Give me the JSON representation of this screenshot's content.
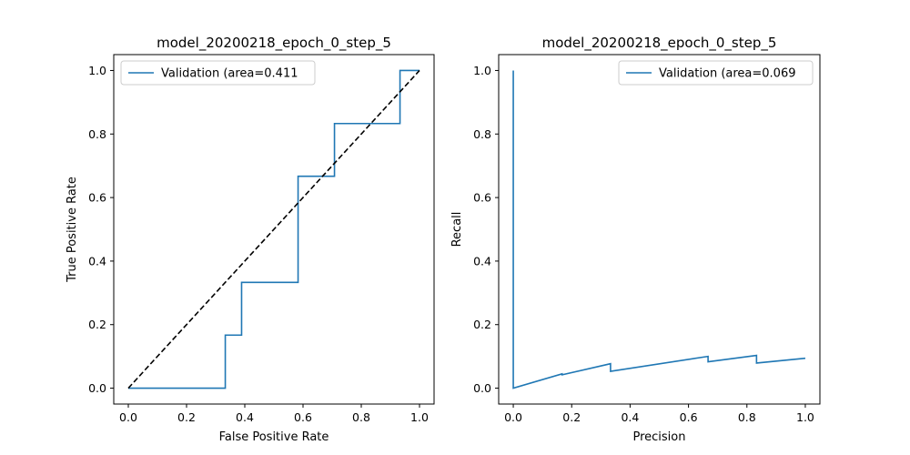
{
  "chart_data": [
    {
      "type": "line",
      "title": "model_20200218_epoch_0_step_5",
      "xlabel": "False Positive Rate",
      "ylabel": "True Positive Rate",
      "xlim": [
        -0.05,
        1.05
      ],
      "ylim": [
        -0.05,
        1.05
      ],
      "xticks": [
        "0.0",
        "0.2",
        "0.4",
        "0.6",
        "0.8",
        "1.0"
      ],
      "yticks": [
        "0.0",
        "0.2",
        "0.4",
        "0.6",
        "0.8",
        "1.0"
      ],
      "legend_position": "top-left",
      "series": [
        {
          "name": "Validation (area=0.411",
          "color": "#1f77b4",
          "style": "solid",
          "x": [
            0,
            0.333,
            0.333,
            0.389,
            0.389,
            0.583,
            0.583,
            0.708,
            0.708,
            0.933,
            0.933,
            1.0
          ],
          "y": [
            0,
            0,
            0.167,
            0.167,
            0.333,
            0.333,
            0.667,
            0.667,
            0.833,
            0.833,
            1.0,
            1.0
          ]
        },
        {
          "name": "",
          "color": "#000000",
          "style": "dashed",
          "x": [
            0,
            1
          ],
          "y": [
            0,
            1
          ]
        }
      ]
    },
    {
      "type": "line",
      "title": "model_20200218_epoch_0_step_5",
      "xlabel": "Precision",
      "ylabel": "Recall",
      "xlim": [
        -0.05,
        1.05
      ],
      "ylim": [
        -0.05,
        1.05
      ],
      "xticks": [
        "0.0",
        "0.2",
        "0.4",
        "0.6",
        "0.8",
        "1.0"
      ],
      "yticks": [
        "0.0",
        "0.2",
        "0.4",
        "0.6",
        "0.8",
        "1.0"
      ],
      "legend_position": "top-right",
      "series": [
        {
          "name": "Validation (area=0.069",
          "color": "#1f77b4",
          "style": "solid",
          "x": [
            0,
            0,
            0.167,
            0.167,
            0.333,
            0.333,
            0.667,
            0.667,
            0.833,
            0.833,
            1.0
          ],
          "y": [
            1.0,
            0,
            0.045,
            0.042,
            0.077,
            0.053,
            0.1,
            0.083,
            0.103,
            0.079,
            0.094
          ]
        }
      ]
    }
  ]
}
